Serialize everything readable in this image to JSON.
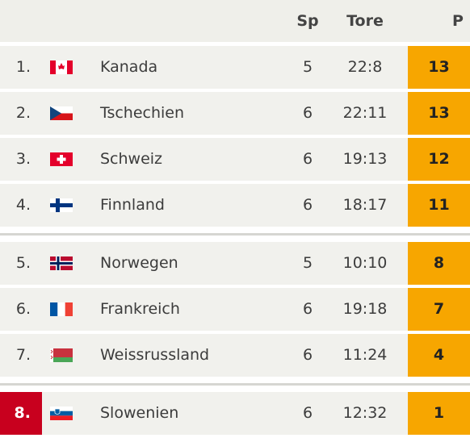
{
  "header": {
    "columns": [
      "Sp",
      "Tore",
      "P"
    ]
  },
  "groups": [
    {
      "rows": [
        {
          "rank": "1.",
          "team": "Kanada",
          "games": 5,
          "goals": "22:8",
          "points": 13
        },
        {
          "rank": "2.",
          "team": "Tschechien",
          "games": 6,
          "goals": "22:11",
          "points": 13
        },
        {
          "rank": "3.",
          "team": "Schweiz",
          "games": 6,
          "goals": "19:13",
          "points": 12
        },
        {
          "rank": "4.",
          "team": "Finnland",
          "games": 6,
          "goals": "18:17",
          "points": 11
        }
      ]
    },
    {
      "rows": [
        {
          "rank": "5.",
          "team": "Norwegen",
          "games": 5,
          "goals": "10:10",
          "points": 8
        },
        {
          "rank": "6.",
          "team": "Frankreich",
          "games": 6,
          "goals": "19:18",
          "points": 7
        },
        {
          "rank": "7.",
          "team": "Weissrussland",
          "games": 6,
          "goals": "11:24",
          "points": 4
        }
      ]
    },
    {
      "rows": [
        {
          "rank": "8.",
          "team": "Slowenien",
          "games": 6,
          "goals": "12:32",
          "points": 1
        }
      ]
    }
  ]
}
